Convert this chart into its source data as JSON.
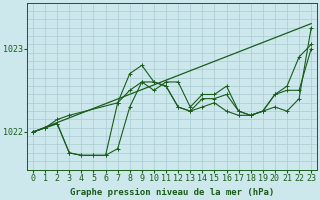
{
  "title": "Graphe pression niveau de la mer (hPa)",
  "background_color": "#cce8ec",
  "grid_color": "#aaccd1",
  "line_color": "#1a5c1a",
  "xlim": [
    -0.5,
    23.5
  ],
  "ylim": [
    1021.55,
    1023.55
  ],
  "yticks": [
    1022,
    1023
  ],
  "tick_fontsize": 6,
  "title_fontsize": 6.5,
  "series": [
    {
      "x": [
        0,
        1,
        2,
        3,
        4,
        5,
        6,
        7,
        8,
        9,
        10,
        11,
        12,
        13,
        14,
        15,
        16,
        17,
        18,
        19,
        20,
        21,
        22,
        23
      ],
      "y": [
        1022.0,
        1022.05,
        1022.1,
        1021.75,
        1021.72,
        1021.72,
        1021.72,
        1021.8,
        1022.3,
        1022.6,
        1022.6,
        1022.55,
        1022.3,
        1022.25,
        1022.3,
        1022.35,
        1022.25,
        1022.2,
        1022.2,
        1022.25,
        1022.3,
        1022.25,
        1022.4,
        1023.25
      ]
    },
    {
      "x": [
        0,
        1,
        2,
        3,
        4,
        5,
        6,
        7,
        8,
        9,
        10,
        11,
        12,
        13,
        14,
        15,
        16,
        17,
        18,
        19,
        20,
        21,
        22,
        23
      ],
      "y": [
        1022.0,
        1022.05,
        1022.1,
        1021.75,
        1021.72,
        1021.72,
        1021.72,
        1022.35,
        1022.7,
        1022.8,
        1022.6,
        1022.55,
        1022.3,
        1022.25,
        1022.4,
        1022.4,
        1022.45,
        1022.25,
        1022.2,
        1022.25,
        1022.45,
        1022.55,
        1022.9,
        1023.05
      ]
    },
    {
      "x": [
        0,
        23
      ],
      "y": [
        1022.0,
        1023.3
      ],
      "straight": true
    },
    {
      "x": [
        0,
        1,
        2,
        3,
        7,
        8,
        9,
        10,
        11,
        12,
        13,
        14,
        15,
        16,
        17,
        18,
        19,
        20,
        21,
        22,
        23
      ],
      "y": [
        1022.0,
        1022.05,
        1022.15,
        1022.2,
        1022.35,
        1022.5,
        1022.6,
        1022.5,
        1022.6,
        1022.6,
        1022.3,
        1022.45,
        1022.45,
        1022.55,
        1022.25,
        1022.2,
        1022.25,
        1022.45,
        1022.5,
        1022.5,
        1023.0
      ]
    }
  ],
  "xtick_labels": [
    "0",
    "1",
    "2",
    "3",
    "4",
    "5",
    "6",
    "7",
    "8",
    "9",
    "10",
    "11",
    "12",
    "13",
    "14",
    "15",
    "16",
    "17",
    "18",
    "19",
    "20",
    "21",
    "22",
    "23"
  ]
}
